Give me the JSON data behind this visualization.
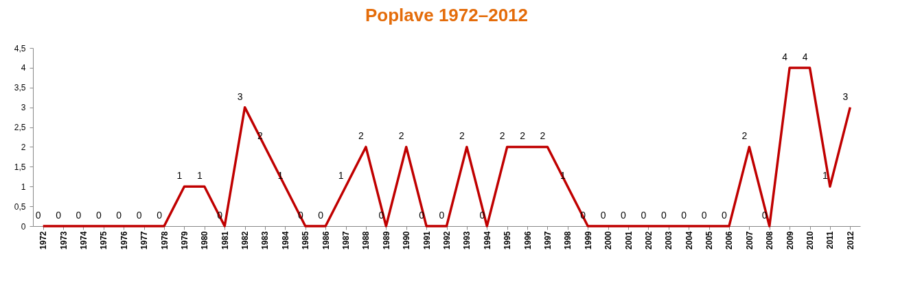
{
  "chart_data": {
    "type": "line",
    "title": "Poplave 1972–2012",
    "categories": [
      "1972",
      "1973",
      "1974",
      "1975",
      "1976",
      "1977",
      "1978",
      "1979",
      "1980",
      "1981",
      "1982",
      "1983",
      "1984",
      "1985",
      "1986",
      "1987",
      "1988",
      "1989",
      "1990",
      "1991",
      "1992",
      "1993",
      "1994",
      "1995",
      "1996",
      "1997",
      "1998",
      "1999",
      "2000",
      "2001",
      "2002",
      "2003",
      "2004",
      "2005",
      "2006",
      "2007",
      "2008",
      "2009",
      "2010",
      "2011",
      "2012"
    ],
    "series": [
      {
        "color": "#c00000",
        "values": [
          0,
          0,
          0,
          0,
          0,
          0,
          0,
          1,
          1,
          0,
          3,
          2,
          1,
          0,
          0,
          1,
          2,
          0,
          2,
          0,
          0,
          2,
          0,
          2,
          2,
          2,
          1,
          0,
          0,
          0,
          0,
          0,
          0,
          0,
          0,
          2,
          0,
          4,
          4,
          1,
          3
        ]
      }
    ],
    "ylim": [
      0,
      4.5
    ],
    "yticks": [
      0,
      {
        "value": 0.5,
        "label": "0,5"
      },
      1,
      {
        "value": 1.5,
        "label": "1,5"
      },
      2,
      {
        "value": 2.5,
        "label": "2,5"
      },
      3,
      {
        "value": 3.5,
        "label": "3,5"
      },
      4,
      {
        "value": 4.5,
        "label": "4,5"
      }
    ],
    "data_labels": true,
    "grid": false,
    "legend": false,
    "marker": "none",
    "line_style": "solid"
  }
}
